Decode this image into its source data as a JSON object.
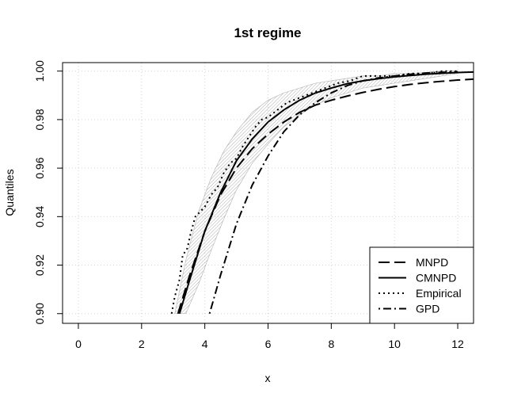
{
  "chart_data": {
    "type": "line",
    "title": "1st regime",
    "xlabel": "x",
    "ylabel": "Quantiles",
    "xlim": [
      -0.5,
      12.5
    ],
    "ylim": [
      0.896,
      1.0035
    ],
    "xticks": [
      0,
      2,
      4,
      6,
      8,
      10,
      12
    ],
    "xtick_labels": [
      "0",
      "2",
      "4",
      "6",
      "8",
      "10",
      "12"
    ],
    "yticks": [
      0.9,
      0.92,
      0.94,
      0.96,
      0.98,
      1.0
    ],
    "ytick_labels": [
      "0.90",
      "0.92",
      "0.94",
      "0.96",
      "0.98",
      "1.00"
    ],
    "grid": true,
    "legend_position": "bottom-right",
    "confidence_band": {
      "x": [
        3.05,
        3.4,
        3.8,
        4.2,
        4.6,
        5.0,
        5.5,
        6.0,
        6.5,
        7.0,
        7.5,
        8.0,
        8.5,
        9.0,
        9.5,
        10.0,
        10.5,
        11.0,
        11.5,
        12.0
      ],
      "lower": [
        0.9,
        0.9,
        0.912,
        0.926,
        0.939,
        0.951,
        0.962,
        0.97,
        0.977,
        0.982,
        0.986,
        0.989,
        0.991,
        0.993,
        0.994,
        0.995,
        0.996,
        0.997,
        0.998,
        0.999
      ],
      "upper": [
        0.9,
        0.922,
        0.942,
        0.956,
        0.967,
        0.975,
        0.983,
        0.988,
        0.991,
        0.993,
        0.995,
        0.996,
        0.997,
        0.998,
        0.998,
        0.999,
        0.999,
        0.9995,
        1.0,
        1.0
      ]
    },
    "series": [
      {
        "name": "MNPD",
        "style": "dashed",
        "x": [
          3.15,
          3.5,
          4.0,
          4.5,
          5.0,
          5.5,
          6.0,
          6.5,
          7.0,
          7.5,
          8.0,
          8.5,
          9.0,
          9.5,
          10.0,
          10.5,
          11.0,
          11.5,
          12.0,
          12.5
        ],
        "values": [
          0.9,
          0.915,
          0.934,
          0.949,
          0.96,
          0.968,
          0.974,
          0.979,
          0.983,
          0.986,
          0.988,
          0.9897,
          0.9912,
          0.9925,
          0.9936,
          0.9945,
          0.9952,
          0.9958,
          0.9963,
          0.9967
        ]
      },
      {
        "name": "CMNPD",
        "style": "solid",
        "x": [
          3.2,
          3.5,
          4.0,
          4.5,
          5.0,
          5.5,
          6.0,
          6.5,
          7.0,
          7.5,
          8.0,
          8.5,
          9.0,
          9.5,
          10.0,
          10.5,
          11.0,
          11.5,
          12.0,
          12.5
        ],
        "values": [
          0.9,
          0.913,
          0.934,
          0.95,
          0.963,
          0.972,
          0.979,
          0.984,
          0.988,
          0.991,
          0.993,
          0.9948,
          0.996,
          0.9969,
          0.9976,
          0.9982,
          0.9987,
          0.9991,
          0.9994,
          0.9996
        ]
      },
      {
        "name": "Empirical",
        "style": "dotted",
        "x": [
          2.95,
          3.05,
          3.2,
          3.3,
          3.45,
          3.55,
          3.7,
          3.85,
          4.0,
          4.2,
          4.4,
          4.6,
          4.8,
          5.0,
          5.2,
          5.4,
          5.6,
          5.8,
          6.0,
          6.3,
          6.6,
          7.0,
          7.4,
          7.8,
          8.2,
          8.6,
          9.0,
          9.5,
          10.0,
          10.5,
          11.0,
          11.5,
          12.0
        ],
        "values": [
          0.9,
          0.907,
          0.914,
          0.924,
          0.927,
          0.933,
          0.94,
          0.942,
          0.944,
          0.949,
          0.952,
          0.958,
          0.962,
          0.964,
          0.969,
          0.973,
          0.977,
          0.98,
          0.981,
          0.984,
          0.987,
          0.989,
          0.991,
          0.993,
          0.995,
          0.996,
          0.998,
          0.998,
          0.998,
          0.999,
          0.999,
          1.0,
          1.0
        ]
      },
      {
        "name": "GPD",
        "style": "dotdash",
        "x": [
          4.15,
          4.5,
          5.0,
          5.5,
          6.0,
          6.5,
          7.0,
          7.5,
          8.0,
          8.5,
          9.0,
          9.5,
          10.0,
          10.5,
          11.0,
          11.5,
          12.0
        ],
        "values": [
          0.9,
          0.916,
          0.937,
          0.953,
          0.965,
          0.975,
          0.982,
          0.987,
          0.991,
          0.994,
          0.996,
          0.9972,
          0.998,
          0.9987,
          0.9992,
          0.9995,
          0.9997
        ]
      }
    ]
  }
}
